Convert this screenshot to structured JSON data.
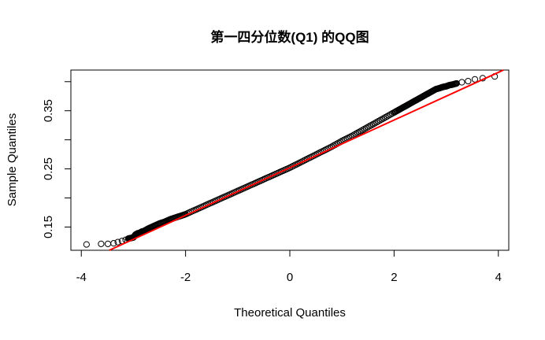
{
  "chart_data": {
    "type": "scatter",
    "title": "第一四分位数(Q1) 的QQ图",
    "xlabel": "Theoretical Quantiles",
    "ylabel": "Sample Quantiles",
    "xlim": [
      -4.2,
      4.2
    ],
    "ylim": [
      0.11,
      0.42
    ],
    "x_ticks": [
      -4,
      -2,
      0,
      2,
      4
    ],
    "x_tick_labels": [
      "-4",
      "-2",
      "0",
      "2",
      "4"
    ],
    "y_ticks": [
      0.15,
      0.25,
      0.35
    ],
    "y_tick_labels": [
      "0.15",
      "0.25",
      "0.35"
    ],
    "y_minor_ticks": [
      0.2,
      0.3,
      0.4
    ],
    "grid": false,
    "marker": "open-circle",
    "series": [
      {
        "marker_color": "#000000",
        "x": [
          -3.9,
          -3.62,
          -3.49,
          -3.38,
          -3.3,
          -3.22,
          -3.15,
          -3.1,
          -3.05,
          -3.0,
          -2.96,
          -2.92,
          -2.88,
          -2.84,
          -2.8,
          -2.7,
          -2.6,
          -2.5,
          -2.4,
          -2.3,
          -2.2,
          -2.1,
          -2.0,
          -1.8,
          -1.6,
          -1.4,
          -1.2,
          -1.0,
          -0.8,
          -0.6,
          -0.4,
          -0.2,
          0.0,
          0.2,
          0.4,
          0.6,
          0.8,
          1.0,
          1.2,
          1.4,
          1.6,
          1.8,
          2.0,
          2.1,
          2.2,
          2.3,
          2.4,
          2.5,
          2.6,
          2.7,
          2.8,
          2.88,
          2.94,
          3.0,
          3.06,
          3.12,
          3.2,
          3.3,
          3.42,
          3.55,
          3.7,
          3.93
        ],
        "y": [
          0.12,
          0.121,
          0.121,
          0.122,
          0.124,
          0.126,
          0.128,
          0.13,
          0.131,
          0.132,
          0.137,
          0.139,
          0.14,
          0.142,
          0.143,
          0.148,
          0.152,
          0.156,
          0.159,
          0.163,
          0.166,
          0.169,
          0.172,
          0.18,
          0.188,
          0.196,
          0.204,
          0.212,
          0.22,
          0.228,
          0.236,
          0.244,
          0.252,
          0.261,
          0.27,
          0.279,
          0.288,
          0.298,
          0.307,
          0.317,
          0.327,
          0.337,
          0.347,
          0.352,
          0.357,
          0.362,
          0.367,
          0.372,
          0.377,
          0.382,
          0.387,
          0.389,
          0.391,
          0.392,
          0.394,
          0.395,
          0.397,
          0.399,
          0.401,
          0.404,
          0.406,
          0.409
        ]
      }
    ],
    "reference_line": {
      "color": "#ff0000",
      "intercept": 0.252,
      "slope": 0.041
    }
  }
}
